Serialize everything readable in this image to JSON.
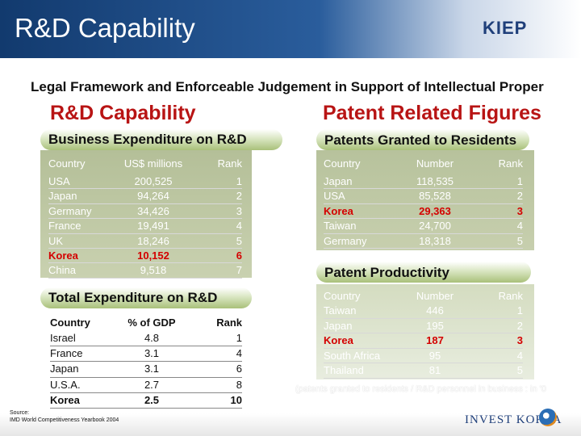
{
  "slide": {
    "title": "R&D Capability",
    "logo_text": "KIEP",
    "subtitle": "Legal Framework and Enforceable Judgement in Support of Intellectual Proper",
    "footer_logo": "INVEST KOREA",
    "source_label": "Source:",
    "source_text": "IMD World Competitiveness Yearbook 2004"
  },
  "left_section": {
    "heading": "R&D Capability",
    "business_expenditure": {
      "title": "Business Expenditure on R&D",
      "headers": [
        "Country",
        "US$ millions",
        "Rank"
      ],
      "rows": [
        {
          "country": "USA",
          "value": "200,525",
          "rank": "1"
        },
        {
          "country": "Japan",
          "value": "94,264",
          "rank": "2"
        },
        {
          "country": "Germany",
          "value": "34,426",
          "rank": "3"
        },
        {
          "country": "France",
          "value": "19,491",
          "rank": "4"
        },
        {
          "country": "UK",
          "value": "18,246",
          "rank": "5"
        },
        {
          "country": "Korea",
          "value": "10,152",
          "rank": "6"
        },
        {
          "country": "China",
          "value": "9,518",
          "rank": "7"
        }
      ]
    },
    "total_expenditure": {
      "title": "Total Expenditure on R&D",
      "headers": [
        "Country",
        "% of GDP",
        "Rank"
      ],
      "rows": [
        {
          "country": "Israel",
          "value": "4.8",
          "rank": "1"
        },
        {
          "country": "France",
          "value": "3.1",
          "rank": "4"
        },
        {
          "country": "Japan",
          "value": "3.1",
          "rank": "6"
        },
        {
          "country": "U.S.A.",
          "value": "2.7",
          "rank": "8"
        },
        {
          "country": "Korea",
          "value": "2.5",
          "rank": "10"
        }
      ]
    }
  },
  "right_section": {
    "heading": "Patent Related Figures",
    "patents_granted": {
      "title": "Patents Granted to Residents",
      "headers": [
        "Country",
        "Number",
        "Rank"
      ],
      "rows": [
        {
          "country": "Japan",
          "value": "118,535",
          "rank": "1"
        },
        {
          "country": "USA",
          "value": "85,528",
          "rank": "2"
        },
        {
          "country": "Korea",
          "value": "29,363",
          "rank": "3"
        },
        {
          "country": "Taiwan",
          "value": "24,700",
          "rank": "4"
        },
        {
          "country": "Germany",
          "value": "18,318",
          "rank": "5"
        }
      ]
    },
    "patent_productivity": {
      "title": "Patent Productivity",
      "headers": [
        "Country",
        "Number",
        "Rank"
      ],
      "rows": [
        {
          "country": "Taiwan",
          "value": "446",
          "rank": "1"
        },
        {
          "country": "Japan",
          "value": "195",
          "rank": "2"
        },
        {
          "country": "Korea",
          "value": "187",
          "rank": "3"
        },
        {
          "country": "South Africa",
          "value": "95",
          "rank": "4"
        },
        {
          "country": "Thailand",
          "value": "81",
          "rank": "5"
        }
      ],
      "footnote": "(patents granted to residents / R&D personnel in business : in '0"
    }
  }
}
